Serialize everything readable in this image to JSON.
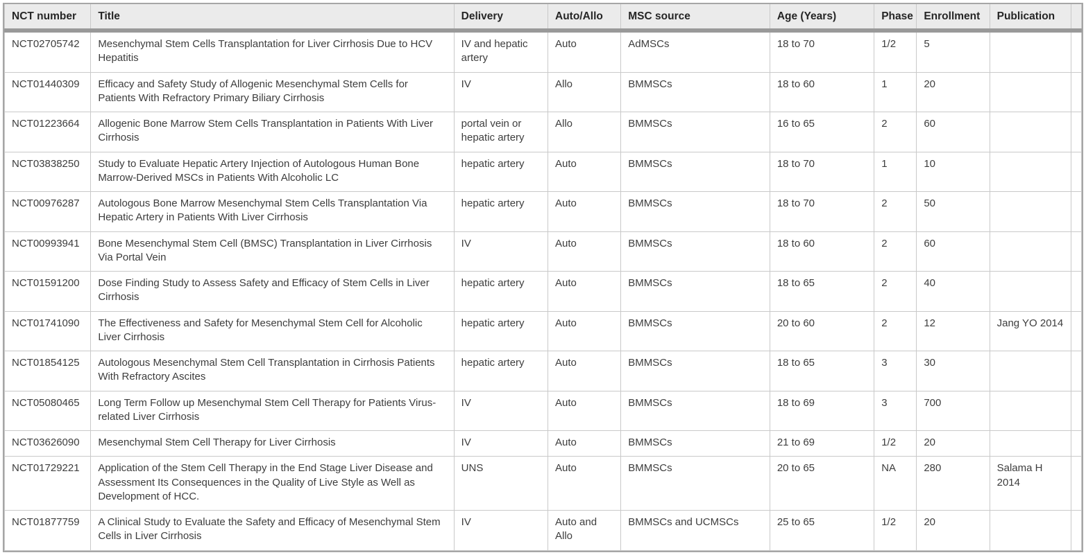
{
  "colors": {
    "header_bg": "#ebebeb",
    "header_bar": "#999999",
    "grid_line": "#c9c9c9",
    "outer_border": "#a6a6a6",
    "header_text": "#262626",
    "body_text": "#3d3d3d"
  },
  "chart_data": {
    "type": "table",
    "columns": [
      "NCT number",
      "Title",
      "Delivery",
      "Auto/Allo",
      "MSC source",
      "Age (Years)",
      "Phase",
      "Enrollment",
      "Publication"
    ],
    "rows": [
      [
        "NCT02705742",
        "Mesenchymal Stem Cells Transplantation for Liver Cirrhosis Due to HCV Hepatitis",
        "IV and hepatic artery",
        "Auto",
        "AdMSCs",
        "18 to 70",
        "1/2",
        "5",
        ""
      ],
      [
        "NCT01440309",
        "Efficacy and Safety Study of Allogenic Mesenchymal Stem Cells for Patients With Refractory Primary Biliary Cirrhosis",
        "IV",
        "Allo",
        "BMMSCs",
        "18 to 60",
        "1",
        "20",
        ""
      ],
      [
        "NCT01223664",
        "Allogenic Bone Marrow Stem Cells Transplantation in Patients With Liver Cirrhosis",
        "portal vein or hepatic artery",
        "Allo",
        "BMMSCs",
        "16 to 65",
        "2",
        "60",
        ""
      ],
      [
        "NCT03838250",
        "Study to Evaluate Hepatic Artery Injection of Autologous Human Bone Marrow-Derived MSCs in Patients With Alcoholic LC",
        "hepatic artery",
        "Auto",
        "BMMSCs",
        "18 to 70",
        "1",
        "10",
        ""
      ],
      [
        "NCT00976287",
        "Autologous Bone Marrow Mesenchymal Stem Cells Transplantation Via Hepatic Artery in Patients With Liver Cirrhosis",
        "hepatic artery",
        "Auto",
        "BMMSCs",
        "18 to 70",
        "2",
        "50",
        ""
      ],
      [
        "NCT00993941",
        "Bone Mesenchymal Stem Cell (BMSC) Transplantation in Liver Cirrhosis Via Portal Vein",
        "IV",
        "Auto",
        "BMMSCs",
        "18 to 60",
        "2",
        "60",
        ""
      ],
      [
        "NCT01591200",
        "Dose Finding Study to Assess Safety and Efficacy of Stem Cells in Liver Cirrhosis",
        "hepatic artery",
        "Auto",
        "BMMSCs",
        "18 to 65",
        "2",
        "40",
        ""
      ],
      [
        "NCT01741090",
        "The Effectiveness and Safety for Mesenchymal Stem Cell for Alcoholic Liver Cirrhosis",
        "hepatic artery",
        "Auto",
        "BMMSCs",
        "20 to 60",
        "2",
        "12",
        "Jang YO 2014"
      ],
      [
        "NCT01854125",
        "Autologous Mesenchymal Stem Cell Transplantation in Cirrhosis Patients With Refractory Ascites",
        "hepatic artery",
        "Auto",
        "BMMSCs",
        "18 to 65",
        "3",
        "30",
        ""
      ],
      [
        "NCT05080465",
        "Long Term Follow up Mesenchymal Stem Cell Therapy for Patients Virus-related Liver Cirrhosis",
        "IV",
        "Auto",
        "BMMSCs",
        "18 to 69",
        "3",
        "700",
        ""
      ],
      [
        "NCT03626090",
        "Mesenchymal Stem Cell Therapy for Liver Cirrhosis",
        "IV",
        "Auto",
        "BMMSCs",
        "21 to 69",
        "1/2",
        "20",
        ""
      ],
      [
        "NCT01729221",
        "Application of the Stem Cell Therapy in the End Stage Liver Disease and Assessment Its Consequences in the Quality of Live Style as Well as Development of HCC.",
        "UNS",
        "Auto",
        "BMMSCs",
        "20 to 65",
        "NA",
        "280",
        "Salama H 2014"
      ],
      [
        "NCT01877759",
        "A Clinical Study to Evaluate the Safety and Efficacy of Mesenchymal Stem Cells in Liver Cirrhosis",
        "IV",
        "Auto and Allo",
        "BMMSCs and UCMSCs",
        "25 to 65",
        "1/2",
        "20",
        ""
      ]
    ]
  }
}
